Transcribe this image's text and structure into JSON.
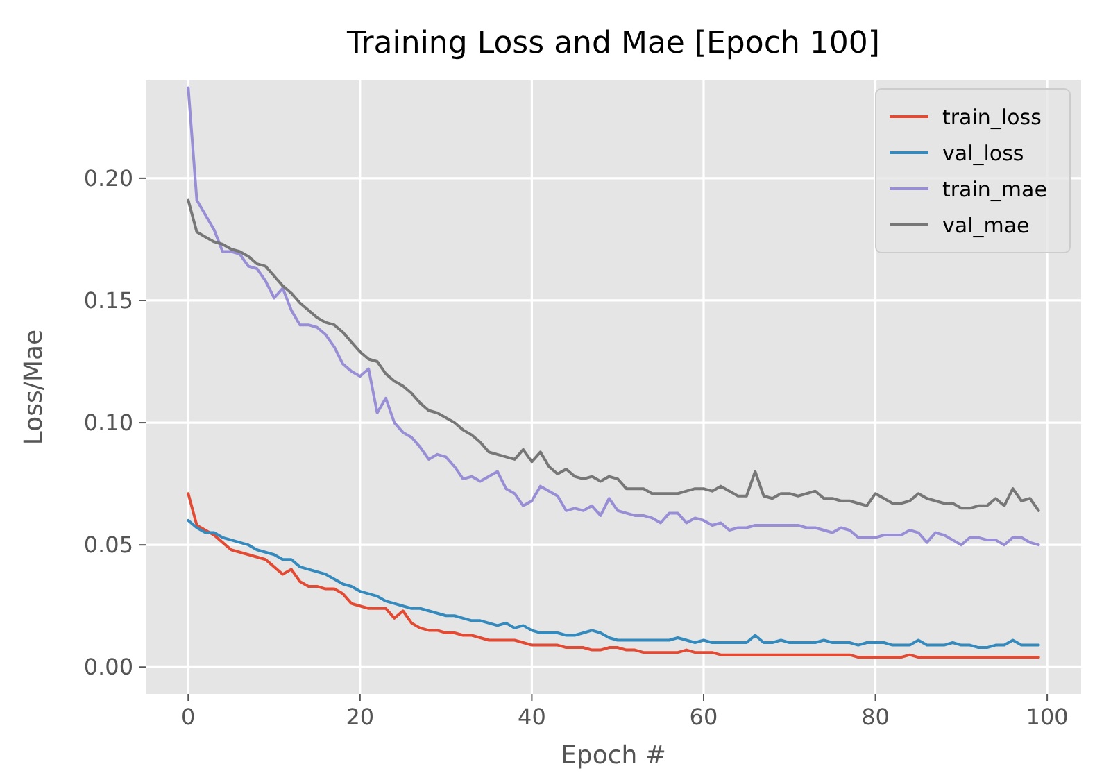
{
  "chart_data": {
    "type": "line",
    "title": "Training Loss and Mae [Epoch 100]",
    "xlabel": "Epoch #",
    "ylabel": "Loss/Mae",
    "x": [
      0,
      1,
      2,
      3,
      4,
      5,
      6,
      7,
      8,
      9,
      10,
      11,
      12,
      13,
      14,
      15,
      16,
      17,
      18,
      19,
      20,
      21,
      22,
      23,
      24,
      25,
      26,
      27,
      28,
      29,
      30,
      31,
      32,
      33,
      34,
      35,
      36,
      37,
      38,
      39,
      40,
      41,
      42,
      43,
      44,
      45,
      46,
      47,
      48,
      49,
      50,
      51,
      52,
      53,
      54,
      55,
      56,
      57,
      58,
      59,
      60,
      61,
      62,
      63,
      64,
      65,
      66,
      67,
      68,
      69,
      70,
      71,
      72,
      73,
      74,
      75,
      76,
      77,
      78,
      79,
      80,
      81,
      82,
      83,
      84,
      85,
      86,
      87,
      88,
      89,
      90,
      91,
      92,
      93,
      94,
      95,
      96,
      97,
      98,
      99
    ],
    "xlim": [
      -4.95,
      103.95
    ],
    "xticks": [
      0,
      20,
      40,
      60,
      80,
      100
    ],
    "ylim": [
      -0.011,
      0.24
    ],
    "yticks": [
      {
        "value": 0,
        "label": "0.00"
      },
      {
        "value": 0.05,
        "label": "0.05"
      },
      {
        "value": 0.1,
        "label": "0.10"
      },
      {
        "value": 0.15,
        "label": "0.15"
      },
      {
        "value": 0.2,
        "label": "0.20"
      }
    ],
    "grid": true,
    "legend": "top right",
    "line_style": "solid",
    "series": [
      {
        "name": "train_loss",
        "color": "#e24a33",
        "values": [
          0.071,
          0.058,
          0.056,
          0.054,
          0.051,
          0.048,
          0.047,
          0.046,
          0.045,
          0.044,
          0.041,
          0.038,
          0.04,
          0.035,
          0.033,
          0.033,
          0.032,
          0.032,
          0.03,
          0.026,
          0.025,
          0.024,
          0.024,
          0.024,
          0.02,
          0.023,
          0.018,
          0.016,
          0.015,
          0.015,
          0.014,
          0.014,
          0.013,
          0.013,
          0.012,
          0.011,
          0.011,
          0.011,
          0.011,
          0.01,
          0.009,
          0.009,
          0.009,
          0.009,
          0.008,
          0.008,
          0.008,
          0.007,
          0.007,
          0.008,
          0.008,
          0.007,
          0.007,
          0.006,
          0.006,
          0.006,
          0.006,
          0.006,
          0.007,
          0.006,
          0.006,
          0.006,
          0.005,
          0.005,
          0.005,
          0.005,
          0.005,
          0.005,
          0.005,
          0.005,
          0.005,
          0.005,
          0.005,
          0.005,
          0.005,
          0.005,
          0.005,
          0.005,
          0.004,
          0.004,
          0.004,
          0.004,
          0.004,
          0.004,
          0.005,
          0.004,
          0.004,
          0.004,
          0.004,
          0.004,
          0.004,
          0.004,
          0.004,
          0.004,
          0.004,
          0.004,
          0.004,
          0.004,
          0.004,
          0.004
        ]
      },
      {
        "name": "val_loss",
        "color": "#348abd",
        "values": [
          0.06,
          0.057,
          0.055,
          0.055,
          0.053,
          0.052,
          0.051,
          0.05,
          0.048,
          0.047,
          0.046,
          0.044,
          0.044,
          0.041,
          0.04,
          0.039,
          0.038,
          0.036,
          0.034,
          0.033,
          0.031,
          0.03,
          0.029,
          0.027,
          0.026,
          0.025,
          0.024,
          0.024,
          0.023,
          0.022,
          0.021,
          0.021,
          0.02,
          0.019,
          0.019,
          0.018,
          0.017,
          0.018,
          0.016,
          0.017,
          0.015,
          0.014,
          0.014,
          0.014,
          0.013,
          0.013,
          0.014,
          0.015,
          0.014,
          0.012,
          0.011,
          0.011,
          0.011,
          0.011,
          0.011,
          0.011,
          0.011,
          0.012,
          0.011,
          0.01,
          0.011,
          0.01,
          0.01,
          0.01,
          0.01,
          0.01,
          0.013,
          0.01,
          0.01,
          0.011,
          0.01,
          0.01,
          0.01,
          0.01,
          0.011,
          0.01,
          0.01,
          0.01,
          0.009,
          0.01,
          0.01,
          0.01,
          0.009,
          0.009,
          0.009,
          0.011,
          0.009,
          0.009,
          0.009,
          0.01,
          0.009,
          0.009,
          0.008,
          0.008,
          0.009,
          0.009,
          0.011,
          0.009,
          0.009,
          0.009
        ]
      },
      {
        "name": "train_mae",
        "color": "#988ed5",
        "values": [
          0.237,
          0.191,
          0.185,
          0.179,
          0.17,
          0.17,
          0.169,
          0.164,
          0.163,
          0.158,
          0.151,
          0.155,
          0.146,
          0.14,
          0.14,
          0.139,
          0.136,
          0.131,
          0.124,
          0.121,
          0.119,
          0.122,
          0.104,
          0.11,
          0.1,
          0.096,
          0.094,
          0.09,
          0.085,
          0.087,
          0.086,
          0.082,
          0.077,
          0.078,
          0.076,
          0.078,
          0.08,
          0.073,
          0.071,
          0.066,
          0.068,
          0.074,
          0.072,
          0.07,
          0.064,
          0.065,
          0.064,
          0.066,
          0.062,
          0.069,
          0.064,
          0.063,
          0.062,
          0.062,
          0.061,
          0.059,
          0.063,
          0.063,
          0.059,
          0.061,
          0.06,
          0.058,
          0.059,
          0.056,
          0.057,
          0.057,
          0.058,
          0.058,
          0.058,
          0.058,
          0.058,
          0.058,
          0.057,
          0.057,
          0.056,
          0.055,
          0.057,
          0.056,
          0.053,
          0.053,
          0.053,
          0.054,
          0.054,
          0.054,
          0.056,
          0.055,
          0.051,
          0.055,
          0.054,
          0.052,
          0.05,
          0.053,
          0.053,
          0.052,
          0.052,
          0.05,
          0.053,
          0.053,
          0.051,
          0.05
        ]
      },
      {
        "name": "val_mae",
        "color": "#777777",
        "values": [
          0.191,
          0.178,
          0.176,
          0.174,
          0.173,
          0.171,
          0.17,
          0.168,
          0.165,
          0.164,
          0.16,
          0.156,
          0.153,
          0.149,
          0.146,
          0.143,
          0.141,
          0.14,
          0.137,
          0.133,
          0.129,
          0.126,
          0.125,
          0.12,
          0.117,
          0.115,
          0.112,
          0.108,
          0.105,
          0.104,
          0.102,
          0.1,
          0.097,
          0.095,
          0.092,
          0.088,
          0.087,
          0.086,
          0.085,
          0.089,
          0.084,
          0.088,
          0.082,
          0.079,
          0.081,
          0.078,
          0.077,
          0.078,
          0.076,
          0.078,
          0.077,
          0.073,
          0.073,
          0.073,
          0.071,
          0.071,
          0.071,
          0.071,
          0.072,
          0.073,
          0.073,
          0.072,
          0.074,
          0.072,
          0.07,
          0.07,
          0.08,
          0.07,
          0.069,
          0.071,
          0.071,
          0.07,
          0.071,
          0.072,
          0.069,
          0.069,
          0.068,
          0.068,
          0.067,
          0.066,
          0.071,
          0.069,
          0.067,
          0.067,
          0.068,
          0.071,
          0.069,
          0.068,
          0.067,
          0.067,
          0.065,
          0.065,
          0.066,
          0.066,
          0.069,
          0.066,
          0.073,
          0.068,
          0.069,
          0.064
        ]
      }
    ]
  }
}
